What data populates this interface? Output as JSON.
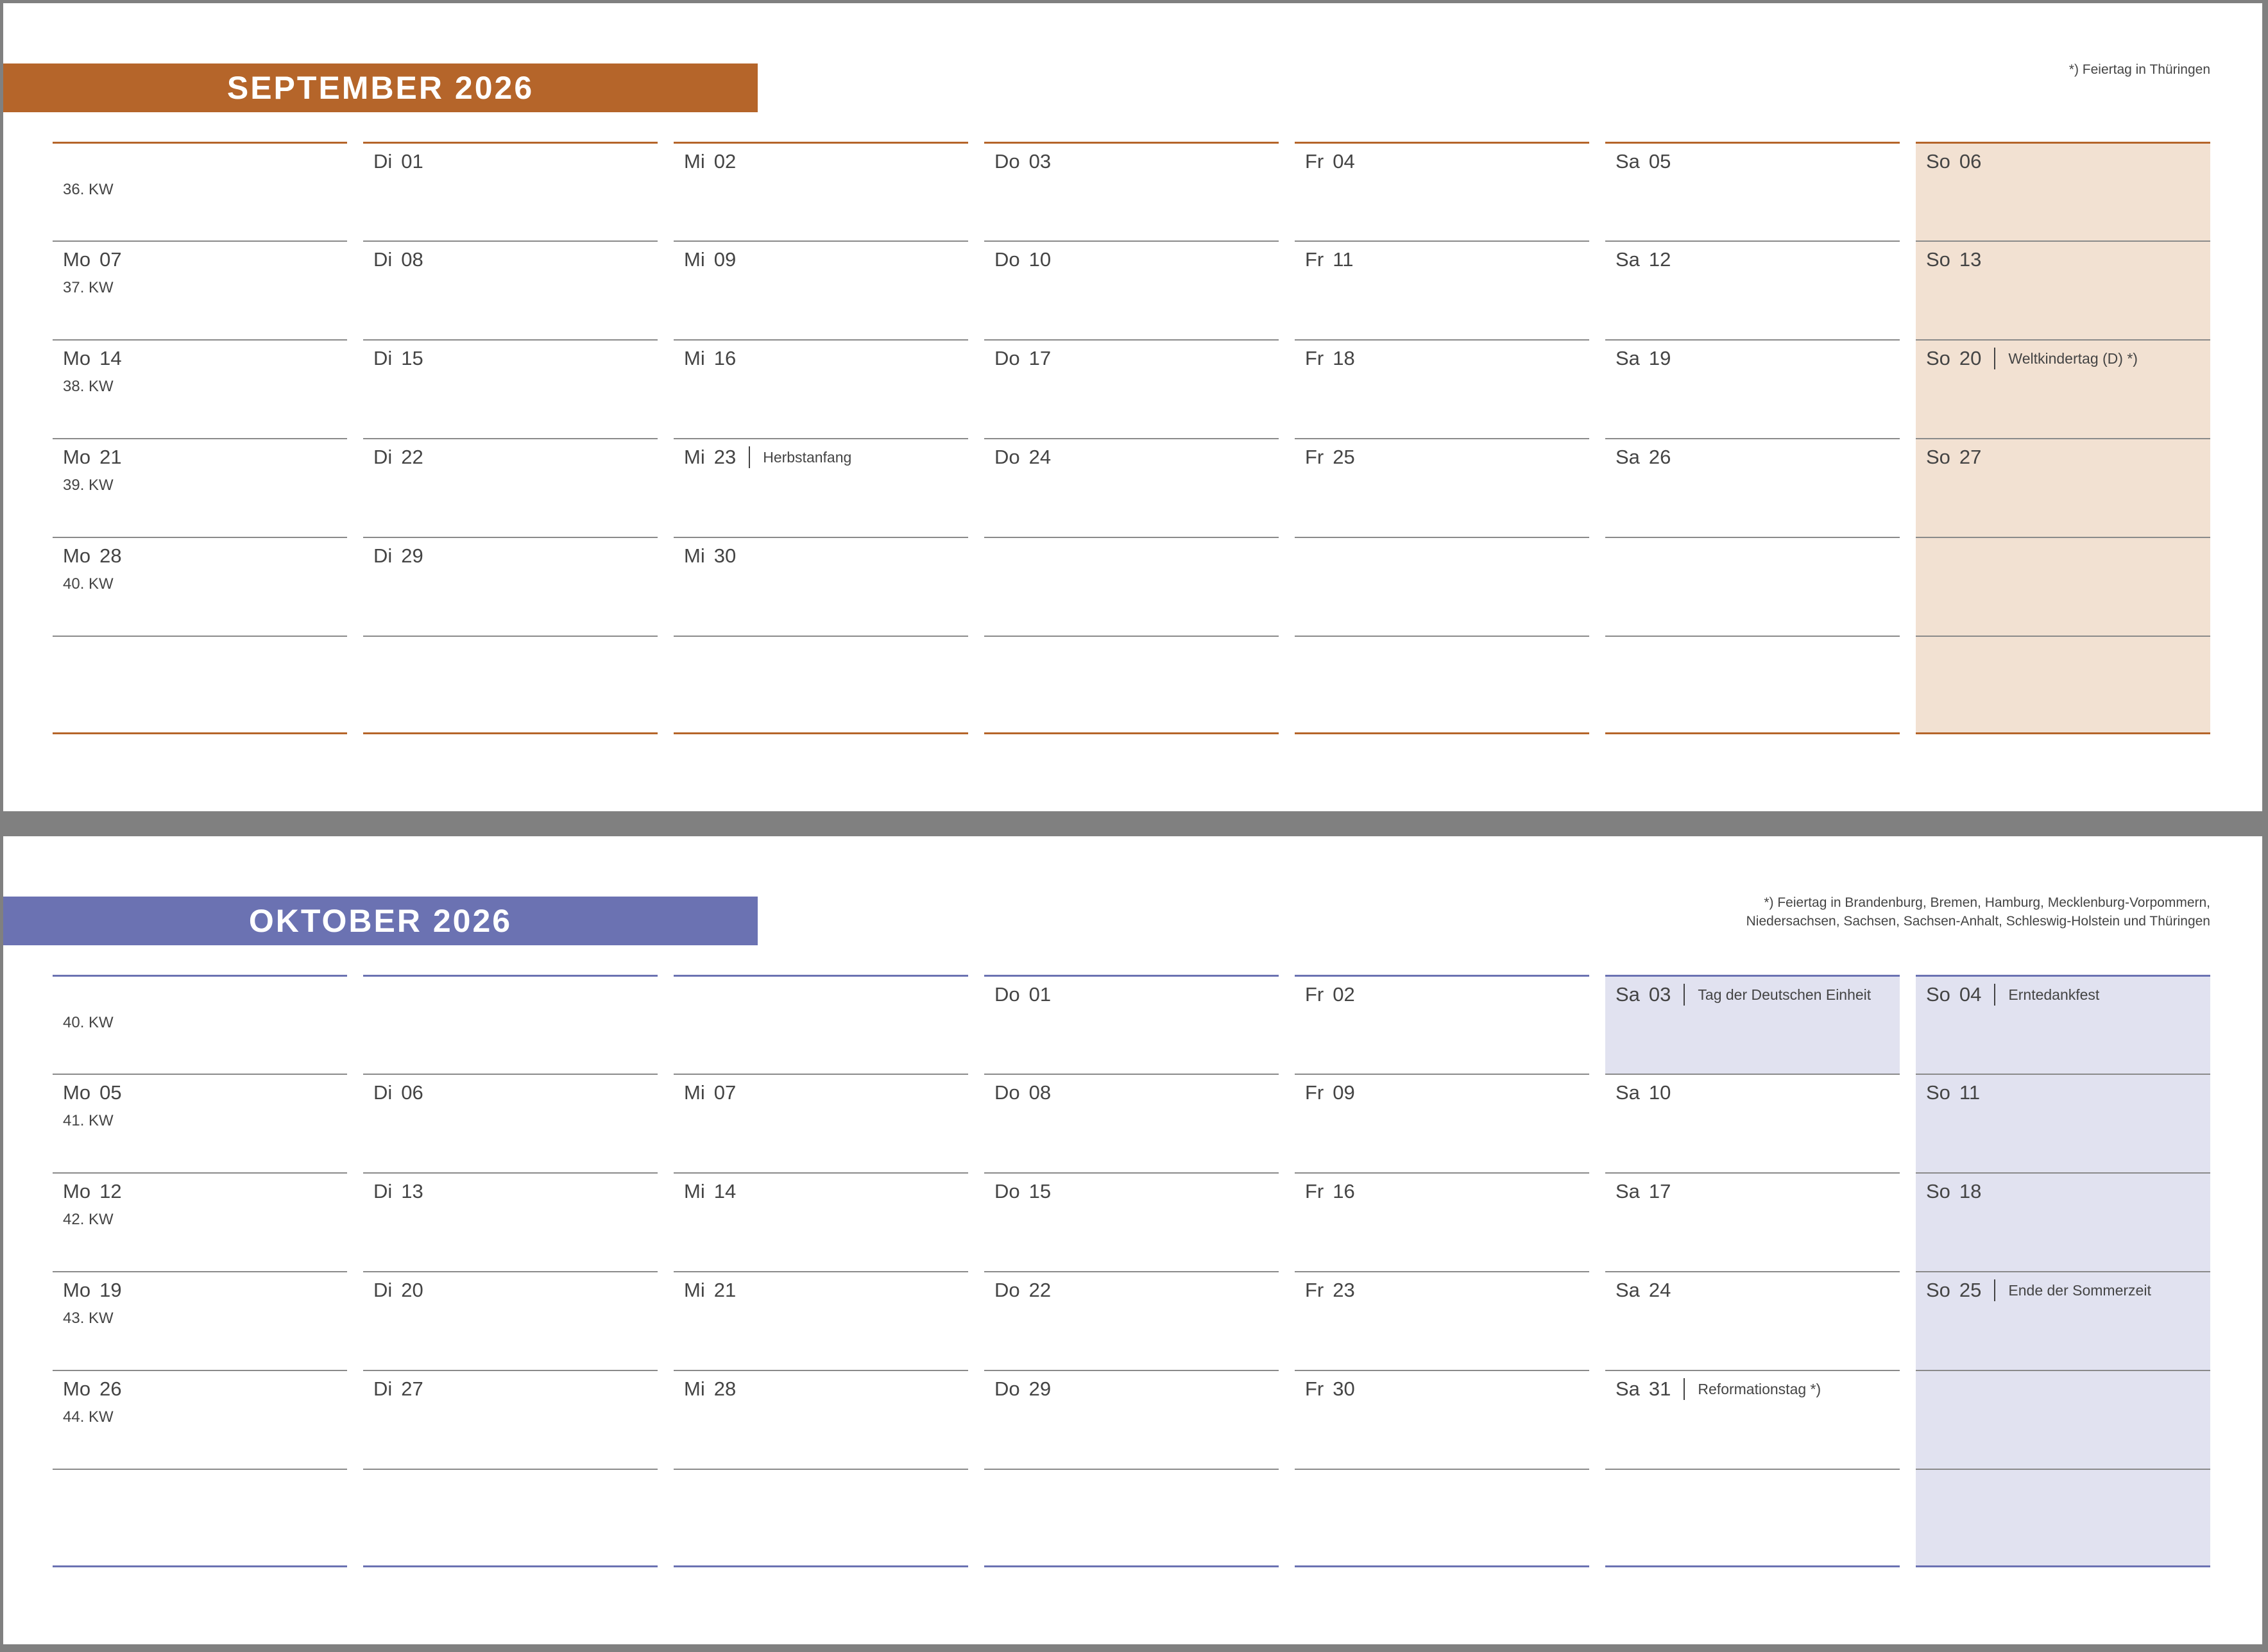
{
  "months": [
    {
      "title": "SEPTEMBER 2026",
      "accent": "#b5652a",
      "weekend_color": "#f2e1d2",
      "footnote": "*) Feiertag in Thüringen",
      "rows": [
        {
          "kw": "36. KW",
          "cells": [
            null,
            {
              "wd": "Di",
              "d": "01"
            },
            {
              "wd": "Mi",
              "d": "02"
            },
            {
              "wd": "Do",
              "d": "03"
            },
            {
              "wd": "Fr",
              "d": "04"
            },
            {
              "wd": "Sa",
              "d": "05"
            },
            {
              "wd": "So",
              "d": "06"
            }
          ]
        },
        {
          "kw": "37. KW",
          "cells": [
            {
              "wd": "Mo",
              "d": "07"
            },
            {
              "wd": "Di",
              "d": "08"
            },
            {
              "wd": "Mi",
              "d": "09"
            },
            {
              "wd": "Do",
              "d": "10"
            },
            {
              "wd": "Fr",
              "d": "11"
            },
            {
              "wd": "Sa",
              "d": "12"
            },
            {
              "wd": "So",
              "d": "13"
            }
          ]
        },
        {
          "kw": "38. KW",
          "cells": [
            {
              "wd": "Mo",
              "d": "14"
            },
            {
              "wd": "Di",
              "d": "15"
            },
            {
              "wd": "Mi",
              "d": "16"
            },
            {
              "wd": "Do",
              "d": "17"
            },
            {
              "wd": "Fr",
              "d": "18"
            },
            {
              "wd": "Sa",
              "d": "19"
            },
            {
              "wd": "So",
              "d": "20",
              "holiday": "Weltkindertag (D) *)"
            }
          ]
        },
        {
          "kw": "39. KW",
          "cells": [
            {
              "wd": "Mo",
              "d": "21"
            },
            {
              "wd": "Di",
              "d": "22"
            },
            {
              "wd": "Mi",
              "d": "23",
              "holiday": "Herbstanfang"
            },
            {
              "wd": "Do",
              "d": "24"
            },
            {
              "wd": "Fr",
              "d": "25"
            },
            {
              "wd": "Sa",
              "d": "26"
            },
            {
              "wd": "So",
              "d": "27"
            }
          ]
        },
        {
          "kw": "40. KW",
          "cells": [
            {
              "wd": "Mo",
              "d": "28"
            },
            {
              "wd": "Di",
              "d": "29"
            },
            {
              "wd": "Mi",
              "d": "30"
            },
            null,
            null,
            null,
            null
          ]
        },
        {
          "kw": "",
          "cells": [
            null,
            null,
            null,
            null,
            null,
            null,
            null
          ]
        }
      ]
    },
    {
      "title": "OKTOBER 2026",
      "accent": "#6b72b2",
      "weekend_color": "#e1e2f0",
      "footnote": "*) Feiertag in Brandenburg, Bremen, Hamburg, Mecklenburg-Vorpommern,\nNiedersachsen, Sachsen, Sachsen-Anhalt, Schleswig-Holstein und Thüringen",
      "rows": [
        {
          "kw": "40. KW",
          "cells": [
            null,
            null,
            null,
            {
              "wd": "Do",
              "d": "01"
            },
            {
              "wd": "Fr",
              "d": "02"
            },
            {
              "wd": "Sa",
              "d": "03",
              "holiday": "Tag der Deutschen Einheit"
            },
            {
              "wd": "So",
              "d": "04",
              "holiday": "Erntedankfest"
            }
          ]
        },
        {
          "kw": "41. KW",
          "cells": [
            {
              "wd": "Mo",
              "d": "05"
            },
            {
              "wd": "Di",
              "d": "06"
            },
            {
              "wd": "Mi",
              "d": "07"
            },
            {
              "wd": "Do",
              "d": "08"
            },
            {
              "wd": "Fr",
              "d": "09"
            },
            {
              "wd": "Sa",
              "d": "10"
            },
            {
              "wd": "So",
              "d": "11"
            }
          ]
        },
        {
          "kw": "42. KW",
          "cells": [
            {
              "wd": "Mo",
              "d": "12"
            },
            {
              "wd": "Di",
              "d": "13"
            },
            {
              "wd": "Mi",
              "d": "14"
            },
            {
              "wd": "Do",
              "d": "15"
            },
            {
              "wd": "Fr",
              "d": "16"
            },
            {
              "wd": "Sa",
              "d": "17"
            },
            {
              "wd": "So",
              "d": "18"
            }
          ]
        },
        {
          "kw": "43. KW",
          "cells": [
            {
              "wd": "Mo",
              "d": "19"
            },
            {
              "wd": "Di",
              "d": "20"
            },
            {
              "wd": "Mi",
              "d": "21"
            },
            {
              "wd": "Do",
              "d": "22"
            },
            {
              "wd": "Fr",
              "d": "23"
            },
            {
              "wd": "Sa",
              "d": "24"
            },
            {
              "wd": "So",
              "d": "25",
              "holiday": "Ende der Sommerzeit"
            }
          ]
        },
        {
          "kw": "44. KW",
          "cells": [
            {
              "wd": "Mo",
              "d": "26"
            },
            {
              "wd": "Di",
              "d": "27"
            },
            {
              "wd": "Mi",
              "d": "28"
            },
            {
              "wd": "Do",
              "d": "29"
            },
            {
              "wd": "Fr",
              "d": "30"
            },
            {
              "wd": "Sa",
              "d": "31",
              "holiday": "Reformationstag *)"
            },
            null
          ]
        },
        {
          "kw": "",
          "cells": [
            null,
            null,
            null,
            null,
            null,
            null,
            null
          ]
        }
      ]
    }
  ]
}
